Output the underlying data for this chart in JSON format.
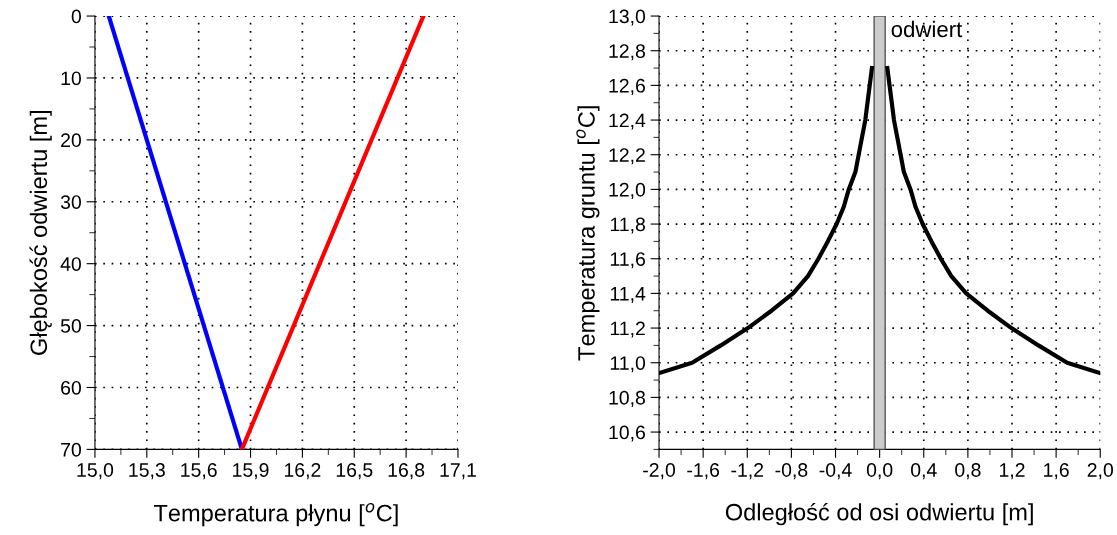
{
  "chart_data": [
    {
      "type": "line",
      "xlabel": "Temperatura płynu [$^{o}$C]",
      "ylabel": "Głębokość odwiertu [m]",
      "xlim": [
        15.0,
        17.1
      ],
      "xticks": [
        {
          "value": 15.0,
          "label": "15,0"
        },
        {
          "value": 15.3,
          "label": "15,3"
        },
        {
          "value": 15.6,
          "label": "15,6"
        },
        {
          "value": 15.9,
          "label": "15,9"
        },
        {
          "value": 16.2,
          "label": "16,2"
        },
        {
          "value": 16.5,
          "label": "16,5"
        },
        {
          "value": 16.8,
          "label": "16,8"
        },
        {
          "value": 17.1,
          "label": "17,1"
        }
      ],
      "ylim": [
        70,
        0
      ],
      "yticks": [
        0,
        10,
        20,
        30,
        40,
        50,
        60,
        70
      ],
      "grid": true,
      "marker": "none",
      "series": [
        {
          "color": "#0000ff",
          "x": [
            15.08,
            15.85
          ],
          "values": [
            0,
            70
          ]
        },
        {
          "color": "#ff0000",
          "x": [
            15.85,
            16.9
          ],
          "values": [
            70,
            0
          ]
        }
      ]
    },
    {
      "type": "line",
      "xlabel": "Odległość od osi odwiertu [m]",
      "ylabel": "Temperatura gruntu [$^{o}$C]",
      "xlim": [
        -2.0,
        2.0
      ],
      "xticks": [
        {
          "value": -2.0,
          "label": "-2,0"
        },
        {
          "value": -1.6,
          "label": "-1,6"
        },
        {
          "value": -1.2,
          "label": "-1,2"
        },
        {
          "value": -0.8,
          "label": "-0,8"
        },
        {
          "value": -0.4,
          "label": "-0,4"
        },
        {
          "value": 0.0,
          "label": "0,0"
        },
        {
          "value": 0.4,
          "label": "0,4"
        },
        {
          "value": 0.8,
          "label": "0,8"
        },
        {
          "value": 1.2,
          "label": "1,2"
        },
        {
          "value": 1.6,
          "label": "1,6"
        },
        {
          "value": 2.0,
          "label": "2,0"
        }
      ],
      "ylim": [
        10.5,
        13.0
      ],
      "yticks": [
        {
          "value": 10.6,
          "label": "10,6"
        },
        {
          "value": 10.8,
          "label": "10,8"
        },
        {
          "value": 11.0,
          "label": "11,0"
        },
        {
          "value": 11.2,
          "label": "11,2"
        },
        {
          "value": 11.4,
          "label": "11,4"
        },
        {
          "value": 11.6,
          "label": "11,6"
        },
        {
          "value": 11.8,
          "label": "11,8"
        },
        {
          "value": 12.0,
          "label": "12,0"
        },
        {
          "value": 12.2,
          "label": "12,2"
        },
        {
          "value": 12.4,
          "label": "12,4"
        },
        {
          "value": 12.6,
          "label": "12,6"
        },
        {
          "value": 12.8,
          "label": "12,8"
        },
        {
          "value": 13.0,
          "label": "13,0"
        }
      ],
      "grid": true,
      "marker": "none",
      "bands": [
        {
          "axis": "x",
          "from": -0.05,
          "to": 0.05,
          "label": "odwiert",
          "color": "#cccccc"
        }
      ],
      "series": [
        {
          "color": "#000000",
          "x": [
            -2.0,
            -1.7,
            -1.44,
            -1.195,
            -0.98,
            -0.785,
            -0.65,
            -0.555,
            -0.47,
            -0.39,
            -0.325,
            -0.28,
            -0.22,
            -0.19,
            -0.13,
            -0.09,
            -0.07
          ],
          "values": [
            10.94,
            11.0,
            11.1,
            11.2,
            11.3,
            11.4,
            11.5,
            11.6,
            11.7,
            11.8,
            11.9,
            12.0,
            12.1,
            12.2,
            12.4,
            12.6,
            12.7
          ]
        },
        {
          "color": "#000000",
          "x": [
            0.07,
            0.09,
            0.13,
            0.19,
            0.22,
            0.28,
            0.325,
            0.39,
            0.47,
            0.555,
            0.65,
            0.785,
            0.98,
            1.195,
            1.44,
            1.7,
            2.0
          ],
          "values": [
            12.7,
            12.6,
            12.4,
            12.2,
            12.1,
            12.0,
            11.9,
            11.8,
            11.7,
            11.6,
            11.5,
            11.4,
            11.3,
            11.2,
            11.1,
            11.0,
            10.94
          ]
        }
      ]
    }
  ]
}
